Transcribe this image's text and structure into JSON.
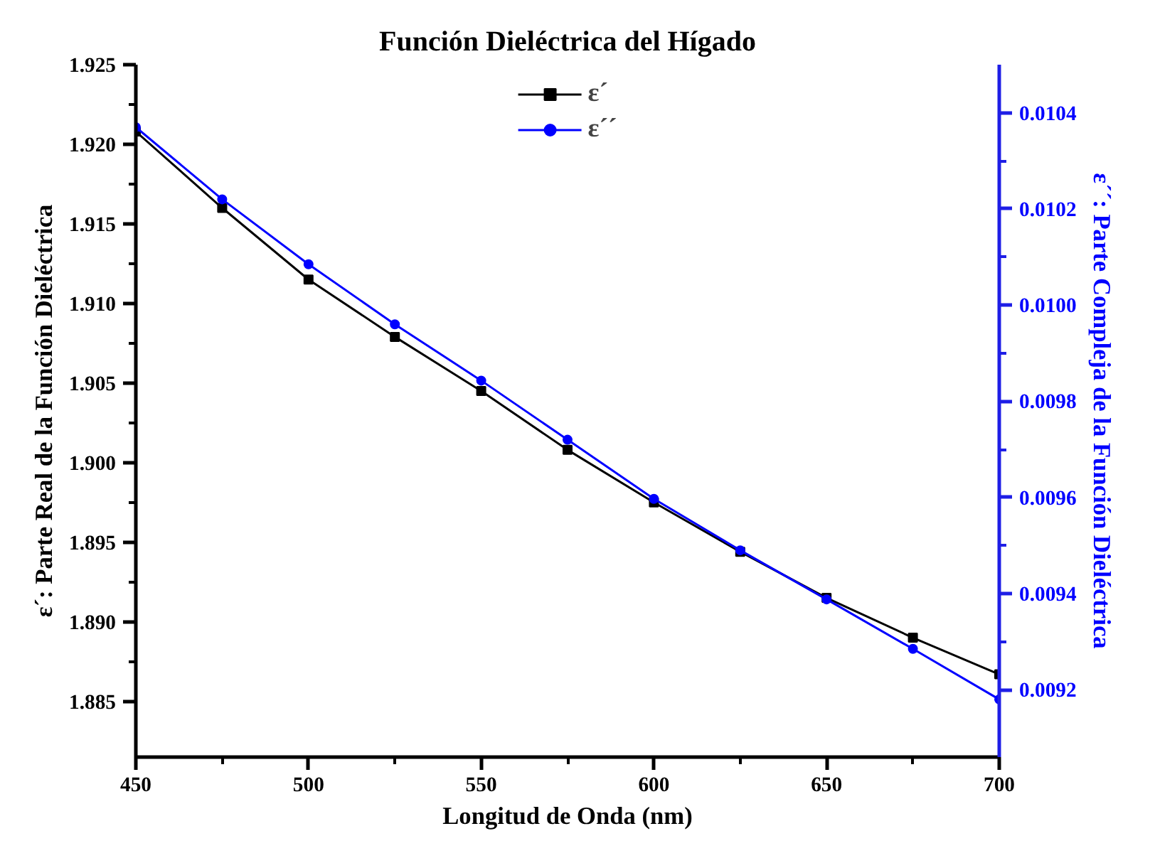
{
  "chart_data": {
    "type": "line",
    "title": "Función Dieléctrica del Hígado",
    "xlabel": "Longitud de Onda (nm)",
    "ylabel": "ε´: Parte Real de la Función Dieléctrica",
    "y2label": "ε´´: Parte Compleja de la Función Dieléctrica",
    "x": [
      450,
      475,
      500,
      525,
      550,
      575,
      600,
      625,
      650,
      675,
      700
    ],
    "series": [
      {
        "name": "ε´",
        "color": "#000000",
        "marker": "square",
        "values": [
          1.9208,
          1.916,
          1.9115,
          1.9079,
          1.9045,
          1.9008,
          1.8975,
          1.8944,
          1.8915,
          1.889,
          1.8867
        ]
      },
      {
        "name": "ε´´",
        "color": "#0000ff",
        "marker": "circle",
        "axis": "y2",
        "values": [
          0.01037,
          0.01022,
          0.010085,
          0.00996,
          0.009843,
          0.00972,
          0.009597,
          0.00949,
          0.009388,
          0.009285,
          0.00918
        ]
      }
    ],
    "xlim": [
      450,
      700
    ],
    "xticks": [
      450,
      500,
      550,
      600,
      650,
      700
    ],
    "ylim": [
      1.8815,
      1.925
    ],
    "yticks": [
      1.885,
      {
        "value": 1.89,
        "label": "1.890"
      },
      1.895,
      {
        "value": 1.9,
        "label": "1.900"
      },
      1.905,
      {
        "value": 1.91,
        "label": "1.910"
      },
      1.915,
      {
        "value": 1.92,
        "label": "1.920"
      },
      1.925
    ],
    "y2lim": [
      0.00906,
      0.0105
    ],
    "y2ticks": [
      0.0092,
      0.0094,
      0.0096,
      0.0098,
      {
        "value": 0.01,
        "label": "0.0100"
      },
      0.0102,
      0.0104
    ],
    "grid": false,
    "legend": "top",
    "line_style": "solid"
  }
}
